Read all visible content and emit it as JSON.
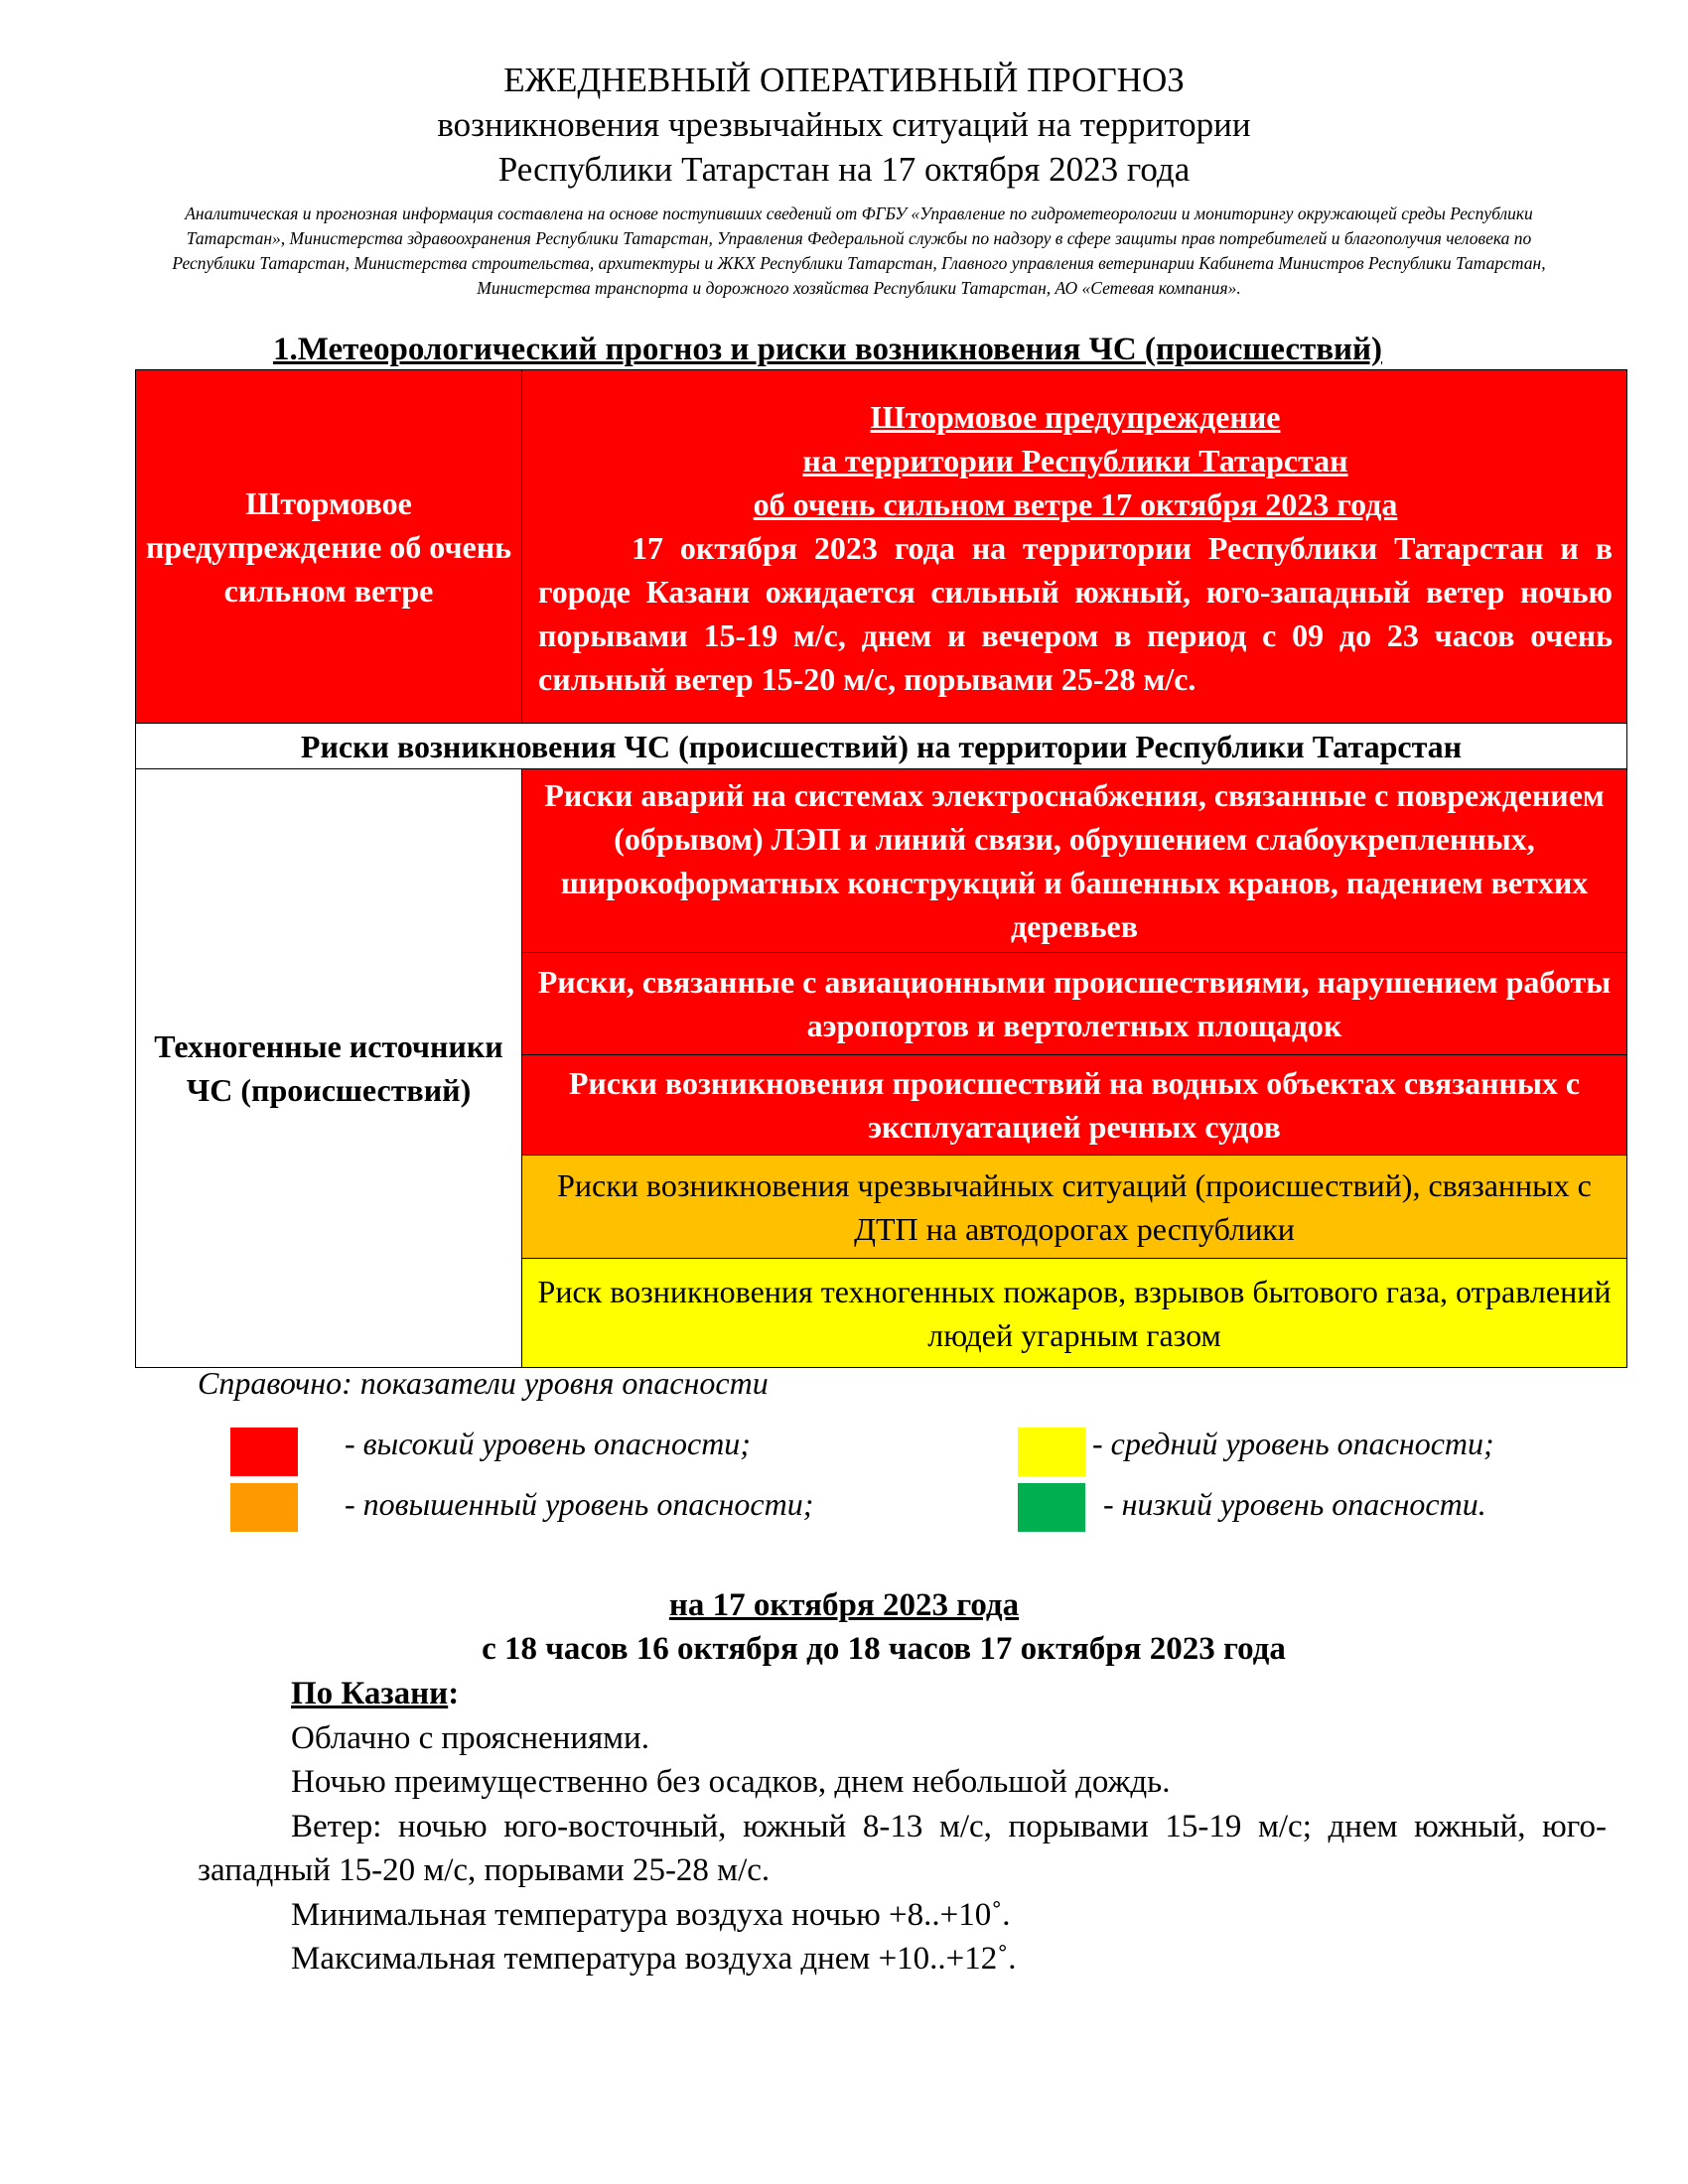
{
  "title": {
    "line1": "ЕЖЕДНЕВНЫЙ ОПЕРАТИВНЫЙ ПРОГНОЗ",
    "line2": "возникновения чрезвычайных ситуаций на территории",
    "line3": "Республики Татарстан на 17 октября 2023 года"
  },
  "intro": "Аналитическая и прогнозная информация составлена на основе поступивших сведений от ФГБУ «Управление по гидрометеорологии и мониторингу окружающей среды Республики Татарстан»,  Министерства здравоохранения Республики Татарстан, Управления Федеральной службы по надзору в сфере защиты прав потребителей и благополучия человека по Республики Татарстан, Министерства строительства, архитектуры и ЖКХ Республики Татарстан, Главного управления ветеринарии Кабинета Министров Республики Татарстан, Министерства транспорта и дорожного хозяйства Республики Татарстан, АО «Сетевая компания».",
  "section_heading": "1.Метеорологический прогноз и риски возникновения ЧС (происшествий)",
  "storm": {
    "left_label": "Штормовое предупреждение об очень сильном ветре",
    "heading1": "Штормовое предупреждение",
    "heading2": "на территории Республики Татарстан",
    "heading3": "об очень сильном ветре 17 октября 2023 года",
    "body": "17 октября 2023 года на территории Республики Татарстан и в городе Казани ожидается сильный южный, юго-западный ветер ночью порывами 15-19 м/с, днем и вечером в период с 09 до 23 часов очень сильный ветер 15-20 м/с, порывами 25-28 м/с."
  },
  "risks_heading": "Риски возникновения ЧС (происшествий) на территории Республики Татарстан",
  "risks": {
    "category": "Техногенные источники ЧС (происшествий)",
    "items": [
      {
        "text": "Риски аварий на системах электроснабжения, связанные с повреждением (обрывом) ЛЭП и линий связи, обрушением слабоукрепленных, широкоформатных конструкций и башенных кранов, падением ветхих деревьев",
        "level": "high"
      },
      {
        "text": "Риски, связанные с авиационными происшествиями, нарушением работы аэропортов и вертолетных площадок",
        "level": "high"
      },
      {
        "text": "Риски возникновения происшествий на водных объектах связанных с эксплуатацией речных судов",
        "level": "high"
      },
      {
        "text": "Риски возникновения чрезвычайных ситуаций (происшествий), связанных с ДТП на автодорогах республики",
        "level": "elevated"
      },
      {
        "text": "Риск возникновения техногенных пожаров, взрывов бытового газа, отравлений людей угарным газом",
        "level": "medium"
      }
    ]
  },
  "legend": {
    "title": "Справочно: показатели уровня опасности",
    "items": [
      {
        "label": "- высокий уровень опасности;",
        "color": "#ff0000"
      },
      {
        "label": "- повышенный уровень опасности;",
        "color": "#ff9900"
      },
      {
        "label": "- средний уровень опасности;",
        "color": "#ffff00"
      },
      {
        "label": "- низкий уровень опасности.",
        "color": "#00b050"
      }
    ]
  },
  "forecast": {
    "date": "на 17 октября 2023 года",
    "period": "с 18 часов 16 октября до 18 часов 17 октября 2023 года",
    "city": "По Казани",
    "city_suffix": ":",
    "lines": [
      "Облачно с прояснениями.",
      "Ночью преимущественно без осадков, днем небольшой дождь.",
      "Ветер: ночью юго-восточный, южный 8-13 м/с, порывами 15-19 м/с; днем южный, юго-западный 15-20 м/с, порывами 25-28 м/с.",
      "Минимальная температура воздуха ночью +8..+10˚.",
      "Максимальная температура воздуха днем +10..+12˚."
    ]
  },
  "colors": {
    "high": "#ff0000",
    "elevated": "#ffc000",
    "medium": "#ffff00"
  }
}
